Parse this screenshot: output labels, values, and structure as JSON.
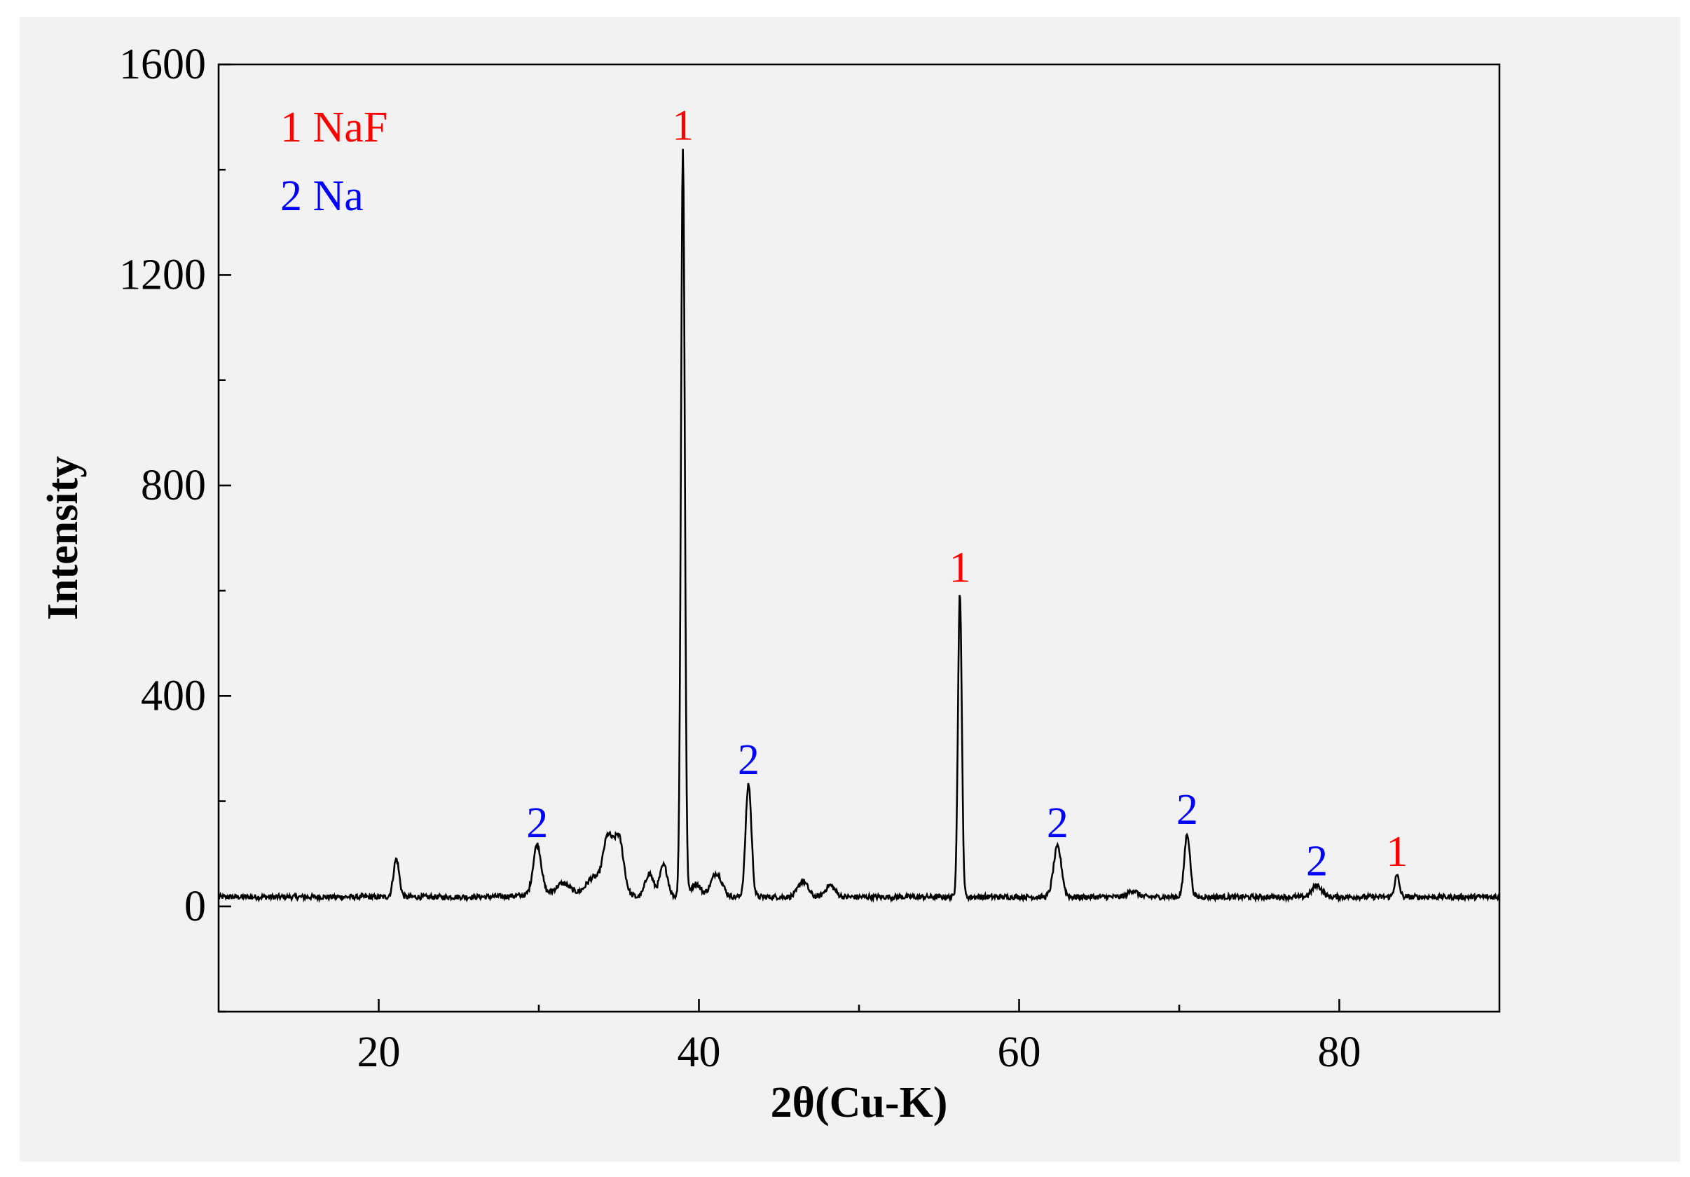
{
  "chart_data": {
    "type": "line",
    "xlabel": "2θ(Cu-K)",
    "ylabel": "Intensity",
    "xlim": [
      10,
      90
    ],
    "ylim": [
      -200,
      1600
    ],
    "x_ticks": [
      20,
      40,
      60,
      80
    ],
    "y_ticks": [
      0,
      400,
      800,
      1200,
      1600
    ],
    "x_tick_labels": [
      "20",
      "40",
      "60",
      "80"
    ],
    "y_tick_labels": [
      "0",
      "400",
      "800",
      "1200",
      "1600"
    ],
    "line_color": "#000000",
    "baseline": 18,
    "legend": [
      {
        "text": "1 NaF",
        "color": "#ff0000"
      },
      {
        "text": "2 Na",
        "color": "#0000ff"
      }
    ],
    "peaks": [
      {
        "x": 21.1,
        "y": 72,
        "w": 0.18
      },
      {
        "x": 29.9,
        "y": 95,
        "w": 0.25,
        "label": "2"
      },
      {
        "x": 31.5,
        "y": 18,
        "w": 0.4
      },
      {
        "x": 33.4,
        "y": 30,
        "w": 0.4
      },
      {
        "x": 34.3,
        "y": 105,
        "w": 0.3
      },
      {
        "x": 35.0,
        "y": 108,
        "w": 0.3
      },
      {
        "x": 36.9,
        "y": 45,
        "w": 0.25
      },
      {
        "x": 37.8,
        "y": 60,
        "w": 0.25
      },
      {
        "x": 39.0,
        "y": 1420,
        "w": 0.12,
        "label": "1"
      },
      {
        "x": 39.8,
        "y": 25,
        "w": 0.3
      },
      {
        "x": 41.1,
        "y": 45,
        "w": 0.35
      },
      {
        "x": 43.1,
        "y": 215,
        "w": 0.18,
        "label": "2"
      },
      {
        "x": 46.5,
        "y": 30,
        "w": 0.3
      },
      {
        "x": 48.2,
        "y": 22,
        "w": 0.3
      },
      {
        "x": 56.3,
        "y": 580,
        "w": 0.12,
        "label": "1"
      },
      {
        "x": 62.4,
        "y": 95,
        "w": 0.25,
        "label": "2"
      },
      {
        "x": 67.1,
        "y": 12,
        "w": 0.3
      },
      {
        "x": 70.5,
        "y": 120,
        "w": 0.18,
        "label": "2"
      },
      {
        "x": 78.6,
        "y": 22,
        "w": 0.3,
        "label": "2"
      },
      {
        "x": 83.6,
        "y": 40,
        "w": 0.15,
        "label": "1"
      }
    ],
    "peak_label_colors": {
      "1": "#ff0000",
      "2": "#0000ff"
    }
  }
}
